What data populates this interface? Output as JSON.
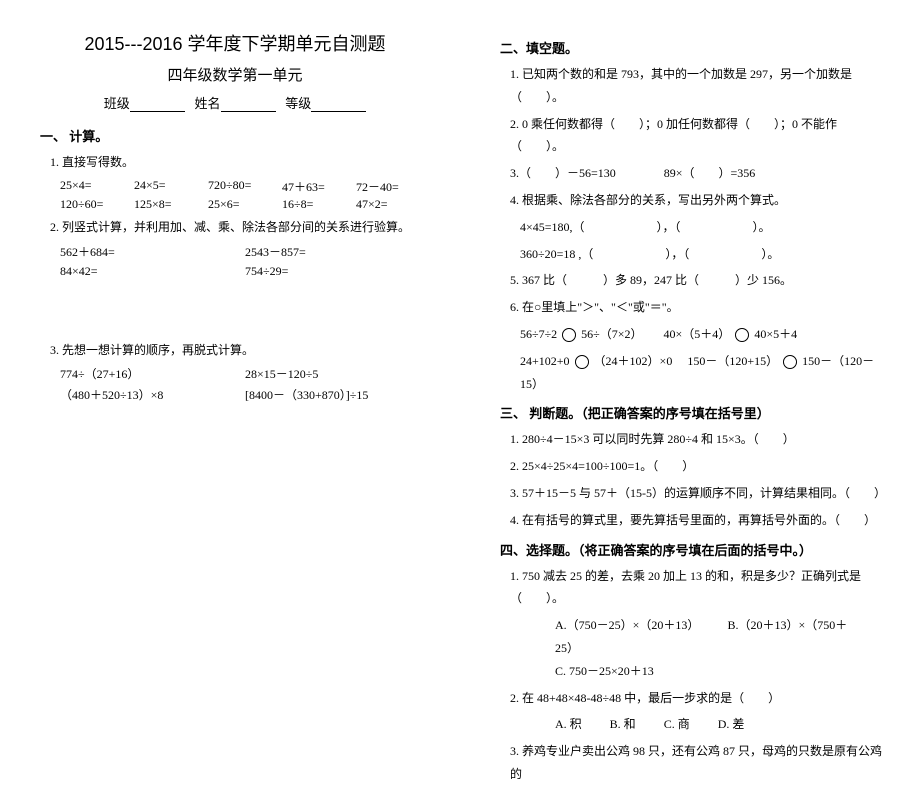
{
  "header": {
    "title": "2015---2016 学年度下学期单元自测题",
    "subtitle": "四年级数学第一单元",
    "class_label": "班级",
    "name_label": "姓名",
    "grade_label": "等级"
  },
  "left": {
    "sec1_title": "一、 计算。",
    "sub1": "1. 直接写得数。",
    "r1": {
      "a": "25×4=",
      "b": "24×5=",
      "c": "720÷80=",
      "d": "47＋63=",
      "e": "72－40="
    },
    "r2": {
      "a": "120÷60=",
      "b": "125×8=",
      "c": "25×6=",
      "d": "16÷8=",
      "e": "47×2="
    },
    "sub2": "2. 列竖式计算，并利用加、减、乘、除法各部分间的关系进行验算。",
    "p1a": "562＋684=",
    "p1b": "2543－857=",
    "p2a": "84×42=",
    "p2b": "754÷29=",
    "sub3": "3. 先想一想计算的顺序，再脱式计算。",
    "p3a": "774÷（27+16）",
    "p3b": "28×15－120÷5",
    "p4a": "（480＋520÷13）×8",
    "p4b": "[8400－（330+870）]÷15"
  },
  "right": {
    "sec2_title": "二、填空题。",
    "q1": "1. 已知两个数的和是 793，其中的一个加数是 297，另一个加数是（　　）。",
    "q2": "2. 0 乘任何数都得（　　）；0 加任何数都得（　　）；0 不能作（　　）。",
    "q3": "3.（　　）－56=130　　　　89×（　　）=356",
    "q4": "4. 根据乘、除法各部分的关系，写出另外两个算式。",
    "q4a": "4×45=180,（　　　　　　），（　　　　　　）。",
    "q4b": "360÷20=18 ,（　　　　　　），（　　　　　　）。",
    "q5": "5. 367 比（　　　）多 89，247 比（　　　）少 156。",
    "q6": "6. 在○里填上\"＞\"、\"＜\"或\"＝\"。",
    "q6a_l": "56÷7÷2",
    "q6a_r": "56÷（7×2）",
    "q6b_l": "40×（5＋4）",
    "q6b_r": "40×5＋4",
    "q6c_l": "24+102+0",
    "q6c_r": "（24＋102）×0",
    "q6d_l": "150－（120+15）",
    "q6d_r": "150－（120－15）",
    "sec3_title": "三、 判断题。（把正确答案的序号填在括号里）",
    "j1": "1. 280÷4－15×3 可以同时先算 280÷4 和 15×3。（　　）",
    "j2": "2. 25×4÷25×4=100÷100=1。（　　）",
    "j3": "3. 57＋15－5 与 57＋（15-5）的运算顺序不同，计算结果相同。（　　）",
    "j4": "4. 在有括号的算式里，要先算括号里面的，再算括号外面的。（　　）",
    "sec4_title": "四、选择题。（将正确答案的序号填在后面的括号中。）",
    "c1": "1. 750 减去 25 的差，去乘 20 加上 13 的和，积是多少？正确列式是（　　）。",
    "c1a": "A.（750－25）×（20＋13）",
    "c1b": "B.（20＋13）×（750＋25）",
    "c1c": "C. 750－25×20＋13",
    "c2": "2. 在 48+48×48-48÷48 中，最后一步求的是（　　）",
    "c2a": "A. 积",
    "c2b": "B. 和",
    "c2c": "C. 商",
    "c2d": "D. 差",
    "c3": "3. 养鸡专业户卖出公鸡 98 只，还有公鸡 87 只，母鸡的只数是原有公鸡的"
  }
}
